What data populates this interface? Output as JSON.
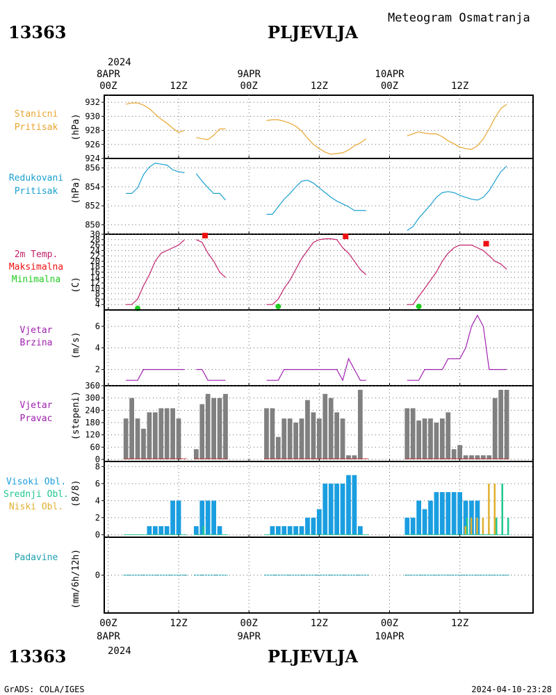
{
  "header": {
    "station_id": "13363",
    "station_name": "PLJEVLJA",
    "subtitle": "Meteogram Osmatranja",
    "year": "2024"
  },
  "footer": {
    "station_id": "13363",
    "station_name": "PLJEVLJA",
    "year": "2024",
    "credit": "GrADS: COLA/IGES",
    "timestamp": "2024-04-10-23:28"
  },
  "time_axis": {
    "day_labels": [
      "8APR",
      "9APR",
      "10APR"
    ],
    "hour_labels": [
      "00Z",
      "12Z",
      "00Z",
      "12Z",
      "00Z",
      "12Z"
    ]
  },
  "colors": {
    "station_pressure": "#e8a530",
    "reduced_pressure": "#1aa0d0",
    "temperature": "#c0206a",
    "tmax": "#ee1111",
    "tmin": "#22cc22",
    "wind": "#a020b0",
    "direction_bar": "#808080",
    "high_cloud": "#1a9ee0",
    "mid_cloud": "#20c890",
    "low_cloud": "#e0b030",
    "precip": "#20a0b0"
  },
  "chart_data": [
    {
      "type": "line",
      "id": "station_pressure",
      "label_lines": [
        "Stanicni",
        "Pritisak"
      ],
      "unit": "(hPa)",
      "y_ticks": [
        924,
        926,
        928,
        930,
        932
      ],
      "ylim": [
        924,
        933
      ],
      "series": [
        {
          "x": [
            3,
            4,
            5,
            6,
            7,
            8,
            9,
            10,
            11,
            12,
            13
          ],
          "y": [
            931.7,
            931.9,
            931.9,
            931.6,
            931.1,
            930.3,
            929.6,
            929.0,
            928.3,
            927.7,
            928.0
          ]
        },
        {
          "x": [
            15,
            16,
            17,
            18,
            19,
            20
          ],
          "y": [
            927.0,
            926.8,
            926.7,
            927.3,
            928.2,
            928.2
          ]
        },
        {
          "x": [
            27,
            28,
            29,
            30,
            31,
            32,
            33,
            34,
            35,
            36,
            37,
            38,
            39,
            40,
            41,
            42,
            43,
            44
          ],
          "y": [
            929.4,
            929.5,
            929.5,
            929.3,
            929.0,
            928.6,
            927.9,
            926.9,
            926.0,
            925.4,
            924.9,
            924.6,
            924.7,
            924.8,
            925.2,
            925.8,
            926.2,
            926.8
          ]
        },
        {
          "x": [
            51,
            52,
            53,
            54,
            55,
            56,
            57,
            58,
            59,
            60,
            61,
            62,
            63,
            64,
            65,
            66,
            67,
            68
          ],
          "y": [
            927.2,
            927.5,
            927.8,
            927.6,
            927.5,
            927.5,
            927.1,
            926.5,
            926.1,
            925.6,
            925.4,
            925.3,
            925.8,
            926.8,
            928.2,
            929.8,
            931.1,
            931.7
          ]
        }
      ]
    },
    {
      "type": "line",
      "id": "reduced_pressure",
      "label_lines": [
        "Redukovani",
        "Pritisak"
      ],
      "unit": "(hPa)",
      "y_ticks": [
        850,
        852,
        854,
        856
      ],
      "ylim": [
        849,
        857
      ],
      "series": [
        {
          "x": [
            3,
            4,
            5,
            6,
            7,
            8,
            9,
            10,
            11,
            12,
            13
          ],
          "y": [
            853.3,
            853.3,
            853.9,
            855.3,
            856.1,
            856.5,
            856.4,
            856.3,
            855.8,
            855.6,
            855.5
          ]
        },
        {
          "x": [
            15,
            16,
            17,
            18,
            19,
            20
          ],
          "y": [
            855.4,
            854.6,
            853.9,
            853.3,
            853.3,
            852.6
          ]
        },
        {
          "x": [
            27,
            28,
            29,
            30,
            31,
            32,
            33,
            34,
            35,
            36,
            37,
            38,
            39,
            40,
            41,
            42,
            43,
            44
          ],
          "y": [
            851.1,
            851.1,
            851.9,
            852.7,
            853.3,
            854.0,
            854.6,
            854.7,
            854.4,
            853.9,
            853.4,
            852.9,
            852.5,
            852.2,
            851.9,
            851.5,
            851.5,
            851.5
          ]
        },
        {
          "x": [
            51,
            52,
            53,
            54,
            55,
            56,
            57,
            58,
            59,
            60,
            61,
            62,
            63,
            64,
            65,
            66,
            67,
            68
          ],
          "y": [
            849.4,
            849.8,
            850.7,
            851.4,
            852.1,
            852.9,
            853.4,
            853.5,
            853.4,
            853.1,
            852.9,
            852.7,
            852.6,
            852.9,
            853.6,
            854.6,
            855.6,
            856.2
          ]
        }
      ]
    },
    {
      "type": "line",
      "id": "temperature",
      "label_lines": [
        "2m Temp.",
        "Maksimalna",
        "Minimalna"
      ],
      "unit": "(C)",
      "y_ticks": [
        4,
        6,
        8,
        10,
        12,
        14,
        16,
        18,
        20,
        22,
        24,
        26,
        28,
        30
      ],
      "ylim": [
        2,
        30
      ],
      "series": [
        {
          "x": [
            3,
            4,
            5,
            6,
            7,
            8,
            9,
            10,
            11,
            12,
            13
          ],
          "y": [
            4,
            4,
            6,
            11,
            15,
            20,
            23,
            24,
            25,
            26,
            28
          ]
        },
        {
          "x": [
            15,
            16,
            17,
            18,
            19,
            20
          ],
          "y": [
            28,
            27,
            23,
            20,
            16,
            14
          ]
        },
        {
          "x": [
            27,
            28,
            29,
            30,
            31,
            32,
            33,
            34,
            35,
            36,
            37,
            38,
            39,
            40,
            41,
            42,
            43,
            44
          ],
          "y": [
            4,
            4,
            6,
            10,
            13,
            17,
            21,
            24,
            27,
            28,
            28.3,
            28.3,
            28,
            25,
            23,
            20,
            17,
            15
          ]
        },
        {
          "x": [
            51,
            52,
            53,
            54,
            55,
            56,
            57,
            58,
            59,
            60,
            61,
            62,
            63,
            64,
            65,
            66,
            67,
            68
          ],
          "y": [
            4,
            4,
            7,
            10,
            13,
            16,
            20,
            23,
            25,
            26,
            26,
            26,
            25,
            24,
            22,
            20,
            19,
            17
          ]
        }
      ],
      "tmax_points": [
        {
          "x": 16.5,
          "y": 29.5
        },
        {
          "x": 40.5,
          "y": 29.2
        },
        {
          "x": 64.5,
          "y": 26.5
        }
      ],
      "tmin_points": [
        {
          "x": 5,
          "y": 2.6
        },
        {
          "x": 29,
          "y": 3.3
        },
        {
          "x": 53,
          "y": 3.3
        }
      ]
    },
    {
      "type": "line",
      "id": "wind_speed",
      "label_lines": [
        "Vjetar",
        "Brzina"
      ],
      "unit": "(m/s)",
      "y_ticks": [
        2,
        4,
        6
      ],
      "ylim": [
        0.5,
        7.5
      ],
      "series": [
        {
          "x": [
            3,
            4,
            5,
            6,
            7,
            8,
            9,
            10,
            11,
            12,
            13
          ],
          "y": [
            1,
            1,
            1,
            2,
            2,
            2,
            2,
            2,
            2,
            2,
            2
          ]
        },
        {
          "x": [
            15,
            16,
            17,
            18,
            19,
            20
          ],
          "y": [
            2,
            2,
            1,
            1,
            1,
            1
          ]
        },
        {
          "x": [
            27,
            28,
            29,
            30,
            31,
            32,
            33,
            34,
            35,
            36,
            37,
            38,
            39,
            40,
            41,
            42,
            43,
            44
          ],
          "y": [
            1,
            1,
            1,
            2,
            2,
            2,
            2,
            2,
            2,
            2,
            2,
            2,
            2,
            1,
            3,
            2,
            1,
            1
          ]
        },
        {
          "x": [
            51,
            52,
            53,
            54,
            55,
            56,
            57,
            58,
            59,
            60,
            61,
            62,
            63,
            64,
            65,
            66,
            67,
            68
          ],
          "y": [
            1,
            1,
            1,
            2,
            2,
            2,
            2,
            3,
            3,
            3,
            4,
            6,
            7,
            6,
            2,
            2,
            2,
            2
          ]
        }
      ]
    },
    {
      "type": "bar",
      "id": "wind_direction",
      "label_lines": [
        "Vjetar",
        "Pravac"
      ],
      "unit": "(stepeni)",
      "y_ticks": [
        0,
        60,
        120,
        180,
        240,
        300,
        360
      ],
      "ylim": [
        -10,
        360
      ],
      "x": [
        3,
        4,
        5,
        6,
        7,
        8,
        9,
        10,
        11,
        12,
        13,
        15,
        16,
        17,
        18,
        19,
        20,
        27,
        28,
        29,
        30,
        31,
        32,
        33,
        34,
        35,
        36,
        37,
        38,
        39,
        40,
        41,
        42,
        43,
        44,
        51,
        52,
        53,
        54,
        55,
        56,
        57,
        58,
        59,
        60,
        61,
        62,
        63,
        64,
        65,
        66,
        67,
        68
      ],
      "values": [
        200,
        300,
        200,
        150,
        230,
        230,
        250,
        250,
        250,
        200,
        0,
        50,
        270,
        320,
        300,
        300,
        320,
        250,
        250,
        110,
        200,
        200,
        180,
        200,
        290,
        230,
        200,
        320,
        300,
        230,
        200,
        20,
        20,
        340,
        0,
        250,
        250,
        190,
        200,
        200,
        180,
        200,
        230,
        50,
        70,
        20,
        20,
        20,
        20,
        20,
        300,
        340,
        340
      ]
    },
    {
      "type": "bar",
      "id": "cloud_cover",
      "label_lines": [
        "Visoki Obl.",
        "Srednji Obl.",
        "Niski Obl."
      ],
      "unit": "(8/8)",
      "y_ticks": [
        0,
        2,
        4,
        6,
        8
      ],
      "ylim": [
        -0.3,
        8.6
      ],
      "x": [
        3,
        4,
        5,
        6,
        7,
        8,
        9,
        10,
        11,
        12,
        13,
        15,
        16,
        17,
        18,
        19,
        20,
        27,
        28,
        29,
        30,
        31,
        32,
        33,
        34,
        35,
        36,
        37,
        38,
        39,
        40,
        41,
        42,
        43,
        44,
        51,
        52,
        53,
        54,
        55,
        56,
        57,
        58,
        59,
        60,
        61,
        62,
        63,
        64,
        65,
        66,
        67,
        68
      ],
      "series": [
        {
          "name": "Visoki Obl.",
          "values": [
            0,
            0,
            0,
            0,
            1,
            1,
            1,
            1,
            4,
            4,
            0,
            1,
            4,
            4,
            4,
            1,
            0,
            0,
            1,
            1,
            1,
            1,
            1,
            1,
            2,
            2,
            3,
            6,
            6,
            6,
            6,
            7,
            7,
            1,
            0,
            2,
            2,
            4,
            3,
            4,
            5,
            5,
            5,
            5,
            5,
            4,
            4,
            4,
            0,
            0,
            0,
            0,
            0
          ]
        },
        {
          "name": "Srednji Obl.",
          "values": [
            0,
            0,
            0,
            0,
            0,
            0,
            0,
            0,
            0,
            0,
            0,
            0,
            1,
            0,
            0,
            0,
            0,
            0,
            0,
            0,
            0,
            0,
            0,
            0,
            0,
            0,
            0,
            0,
            0,
            0,
            0,
            0,
            0,
            0,
            0,
            0,
            0,
            0,
            0,
            0,
            0,
            0,
            0,
            0,
            0,
            2,
            0,
            0,
            0,
            0,
            2,
            6,
            2
          ]
        },
        {
          "name": "Niski Obl.",
          "values": [
            0,
            0,
            0,
            0,
            0,
            0,
            0,
            0,
            0,
            0,
            0,
            0,
            0,
            0,
            0,
            0,
            0,
            0,
            0,
            0,
            0,
            0,
            0,
            0,
            0,
            0,
            0,
            0,
            0,
            0,
            0,
            0,
            0,
            0,
            0,
            0,
            0,
            0,
            0,
            0,
            0,
            0,
            0,
            0,
            0,
            1,
            2,
            2,
            2,
            6,
            6,
            0,
            0
          ]
        }
      ]
    },
    {
      "type": "bar",
      "id": "precipitation",
      "label_lines": [
        "Padavine"
      ],
      "unit": "(mm/6h/12h)",
      "y_ticks": [
        0
      ],
      "ylim": [
        -3,
        3
      ],
      "series": [
        {
          "x_range": [
            3,
            13
          ],
          "value": 0
        },
        {
          "x_range": [
            15,
            20
          ],
          "value": 0
        },
        {
          "x_range": [
            27,
            44
          ],
          "value": 0
        },
        {
          "x_range": [
            51,
            68
          ],
          "value": 0
        }
      ]
    }
  ]
}
